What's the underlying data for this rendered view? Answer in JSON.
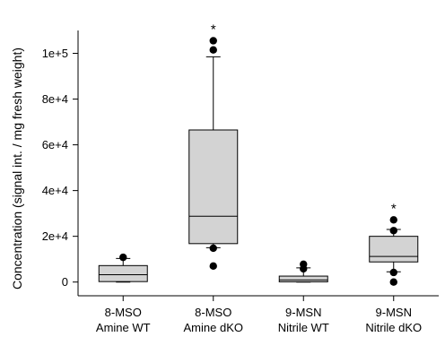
{
  "chart_data": {
    "type": "box",
    "ylabel": "Concentration (signal int. / mg fresh weight)",
    "xlabel": "",
    "ylim": [
      -6000,
      110000
    ],
    "yticks": [
      {
        "value": 0,
        "label": "0"
      },
      {
        "value": 20000,
        "label": "2e+4"
      },
      {
        "value": 40000,
        "label": "4e+4"
      },
      {
        "value": 60000,
        "label": "6e+4"
      },
      {
        "value": 80000,
        "label": "8e+4"
      },
      {
        "value": 100000,
        "label": "1e+5"
      }
    ],
    "categories": [
      {
        "line1": "8-MSO",
        "line2": "Amine WT"
      },
      {
        "line1": "8-MSO",
        "line2": "Amine dKO"
      },
      {
        "line1": "9-MSN",
        "line2": "Nitrile WT"
      },
      {
        "line1": "9-MSN",
        "line2": "Nitrile dKO"
      }
    ],
    "boxes": [
      {
        "whisker_low": 0,
        "q1": 200,
        "median": 3200,
        "q3": 7200,
        "whisker_high": 10300,
        "outliers": [
          10800
        ],
        "significance": ""
      },
      {
        "whisker_low": 15000,
        "q1": 16800,
        "median": 28800,
        "q3": 66500,
        "whisker_high": 98500,
        "outliers": [
          7000,
          14800,
          101500,
          105500
        ],
        "significance": "*"
      },
      {
        "whisker_low": 0,
        "q1": 100,
        "median": 900,
        "q3": 2600,
        "whisker_high": 6200,
        "outliers": [
          5800,
          7800
        ],
        "significance": ""
      },
      {
        "whisker_low": 4500,
        "q1": 8800,
        "median": 11200,
        "q3": 20000,
        "whisker_high": 23000,
        "outliers": [
          0,
          4200,
          22500,
          27200
        ],
        "significance": "*"
      }
    ],
    "box_fill": "#d3d3d3",
    "grid": false,
    "legend": "none"
  }
}
